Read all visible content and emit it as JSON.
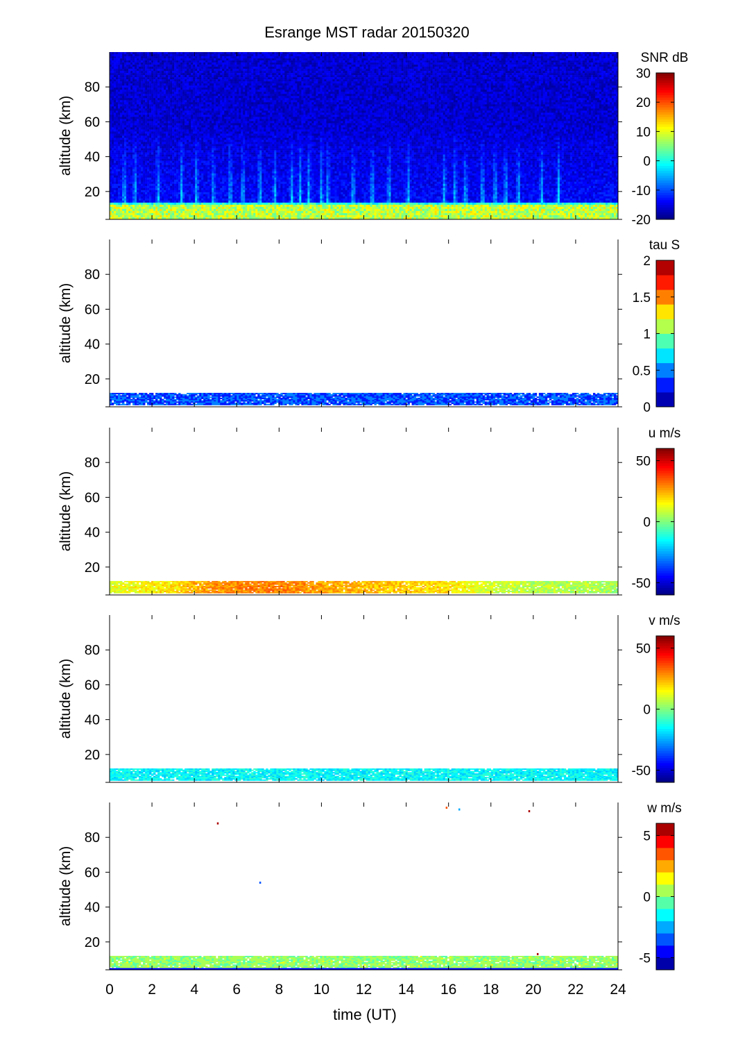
{
  "title": "Esrange MST radar 20150320",
  "xlabel": "time (UT)",
  "ylabel": "altitude (km)",
  "chart_data": [
    {
      "type": "heatmap",
      "quantity": "SNR",
      "colorbar_label": "SNR dB",
      "clim": [
        -20,
        30
      ],
      "colorbar_ticks": [
        -20,
        -10,
        0,
        10,
        20,
        30
      ],
      "colormap": "continuous-jet",
      "xlim": [
        0,
        24
      ],
      "ylim": [
        4,
        100
      ],
      "xticks": [
        0,
        2,
        4,
        6,
        8,
        10,
        12,
        14,
        16,
        18,
        20,
        22,
        24
      ],
      "yticks": [
        20,
        40,
        60,
        80
      ],
      "background_level_db": -16,
      "low_layer": {
        "alt_range_km": [
          5,
          12
        ],
        "level_db": 8
      },
      "mid_layer": {
        "alt_range_km": [
          12,
          14
        ],
        "level_db": 0
      },
      "vertical_streaks_time_ut": [
        0.7,
        1.2,
        2.3,
        3.4,
        4.1,
        4.9,
        5.7,
        6.3,
        7.1,
        7.8,
        8.6,
        9.0,
        9.4,
        10.0,
        10.3,
        11.5,
        12.4,
        13.2,
        14.1,
        15.8,
        16.3,
        16.8,
        17.6,
        18.2,
        18.7,
        19.3,
        20.4,
        21.2
      ]
    },
    {
      "type": "heatmap",
      "quantity": "tau",
      "colorbar_label": "tau S",
      "clim": [
        0,
        2
      ],
      "colorbar_ticks": [
        0,
        0.5,
        1,
        1.5,
        2
      ],
      "colormap": "discrete-jet-10",
      "xlim": [
        0,
        24
      ],
      "ylim": [
        4,
        100
      ],
      "xticks": [
        0,
        2,
        4,
        6,
        8,
        10,
        12,
        14,
        16,
        18,
        20,
        22,
        24
      ],
      "yticks": [
        20,
        40,
        60,
        80
      ],
      "data_layer": {
        "alt_range_km": [
          5,
          12
        ],
        "typical_value": 0.4
      }
    },
    {
      "type": "heatmap",
      "quantity": "u",
      "colorbar_label": "u m/s",
      "clim": [
        -60,
        60
      ],
      "colorbar_ticks": [
        -50,
        0,
        50
      ],
      "colormap": "continuous-jet",
      "xlim": [
        0,
        24
      ],
      "ylim": [
        4,
        100
      ],
      "xticks": [
        0,
        2,
        4,
        6,
        8,
        10,
        12,
        14,
        16,
        18,
        20,
        22,
        24
      ],
      "yticks": [
        20,
        40,
        60,
        80
      ],
      "data_layer": {
        "alt_range_km": [
          5,
          12
        ]
      },
      "time_profile": {
        "time_ut": [
          0,
          3,
          5,
          8,
          10,
          13,
          16,
          18,
          20,
          24
        ],
        "value_ms": [
          12,
          18,
          28,
          30,
          26,
          22,
          18,
          10,
          6,
          5
        ]
      }
    },
    {
      "type": "heatmap",
      "quantity": "v",
      "colorbar_label": "v m/s",
      "clim": [
        -60,
        60
      ],
      "colorbar_ticks": [
        -50,
        0,
        50
      ],
      "colormap": "continuous-jet",
      "xlim": [
        0,
        24
      ],
      "ylim": [
        4,
        100
      ],
      "xticks": [
        0,
        2,
        4,
        6,
        8,
        10,
        12,
        14,
        16,
        18,
        20,
        22,
        24
      ],
      "yticks": [
        20,
        40,
        60,
        80
      ],
      "data_layer": {
        "alt_range_km": [
          5,
          12
        ],
        "typical_value": -15
      }
    },
    {
      "type": "heatmap",
      "quantity": "w",
      "colorbar_label": "w m/s",
      "clim": [
        -6,
        6
      ],
      "colorbar_ticks": [
        -5,
        0,
        5
      ],
      "colormap": "discrete-jet-12",
      "xlim": [
        0,
        24
      ],
      "ylim": [
        4,
        100
      ],
      "xticks": [
        0,
        2,
        4,
        6,
        8,
        10,
        12,
        14,
        16,
        18,
        20,
        22,
        24
      ],
      "yticks": [
        20,
        40,
        60,
        80
      ],
      "data_layer": {
        "alt_range_km": [
          5,
          12
        ],
        "typical_value": 0.3
      },
      "bottom_row": {
        "alt_km": 4.5,
        "value_ms": -5
      },
      "outliers": [
        {
          "time_ut": 5.1,
          "alt_km": 88,
          "value_ms": 6
        },
        {
          "time_ut": 7.1,
          "alt_km": 54,
          "value_ms": -4
        },
        {
          "time_ut": 15.9,
          "alt_km": 97,
          "value_ms": 3
        },
        {
          "time_ut": 16.5,
          "alt_km": 96,
          "value_ms": -3
        },
        {
          "time_ut": 19.8,
          "alt_km": 95,
          "value_ms": 6
        },
        {
          "time_ut": 20.2,
          "alt_km": 13,
          "value_ms": 6
        }
      ]
    }
  ]
}
